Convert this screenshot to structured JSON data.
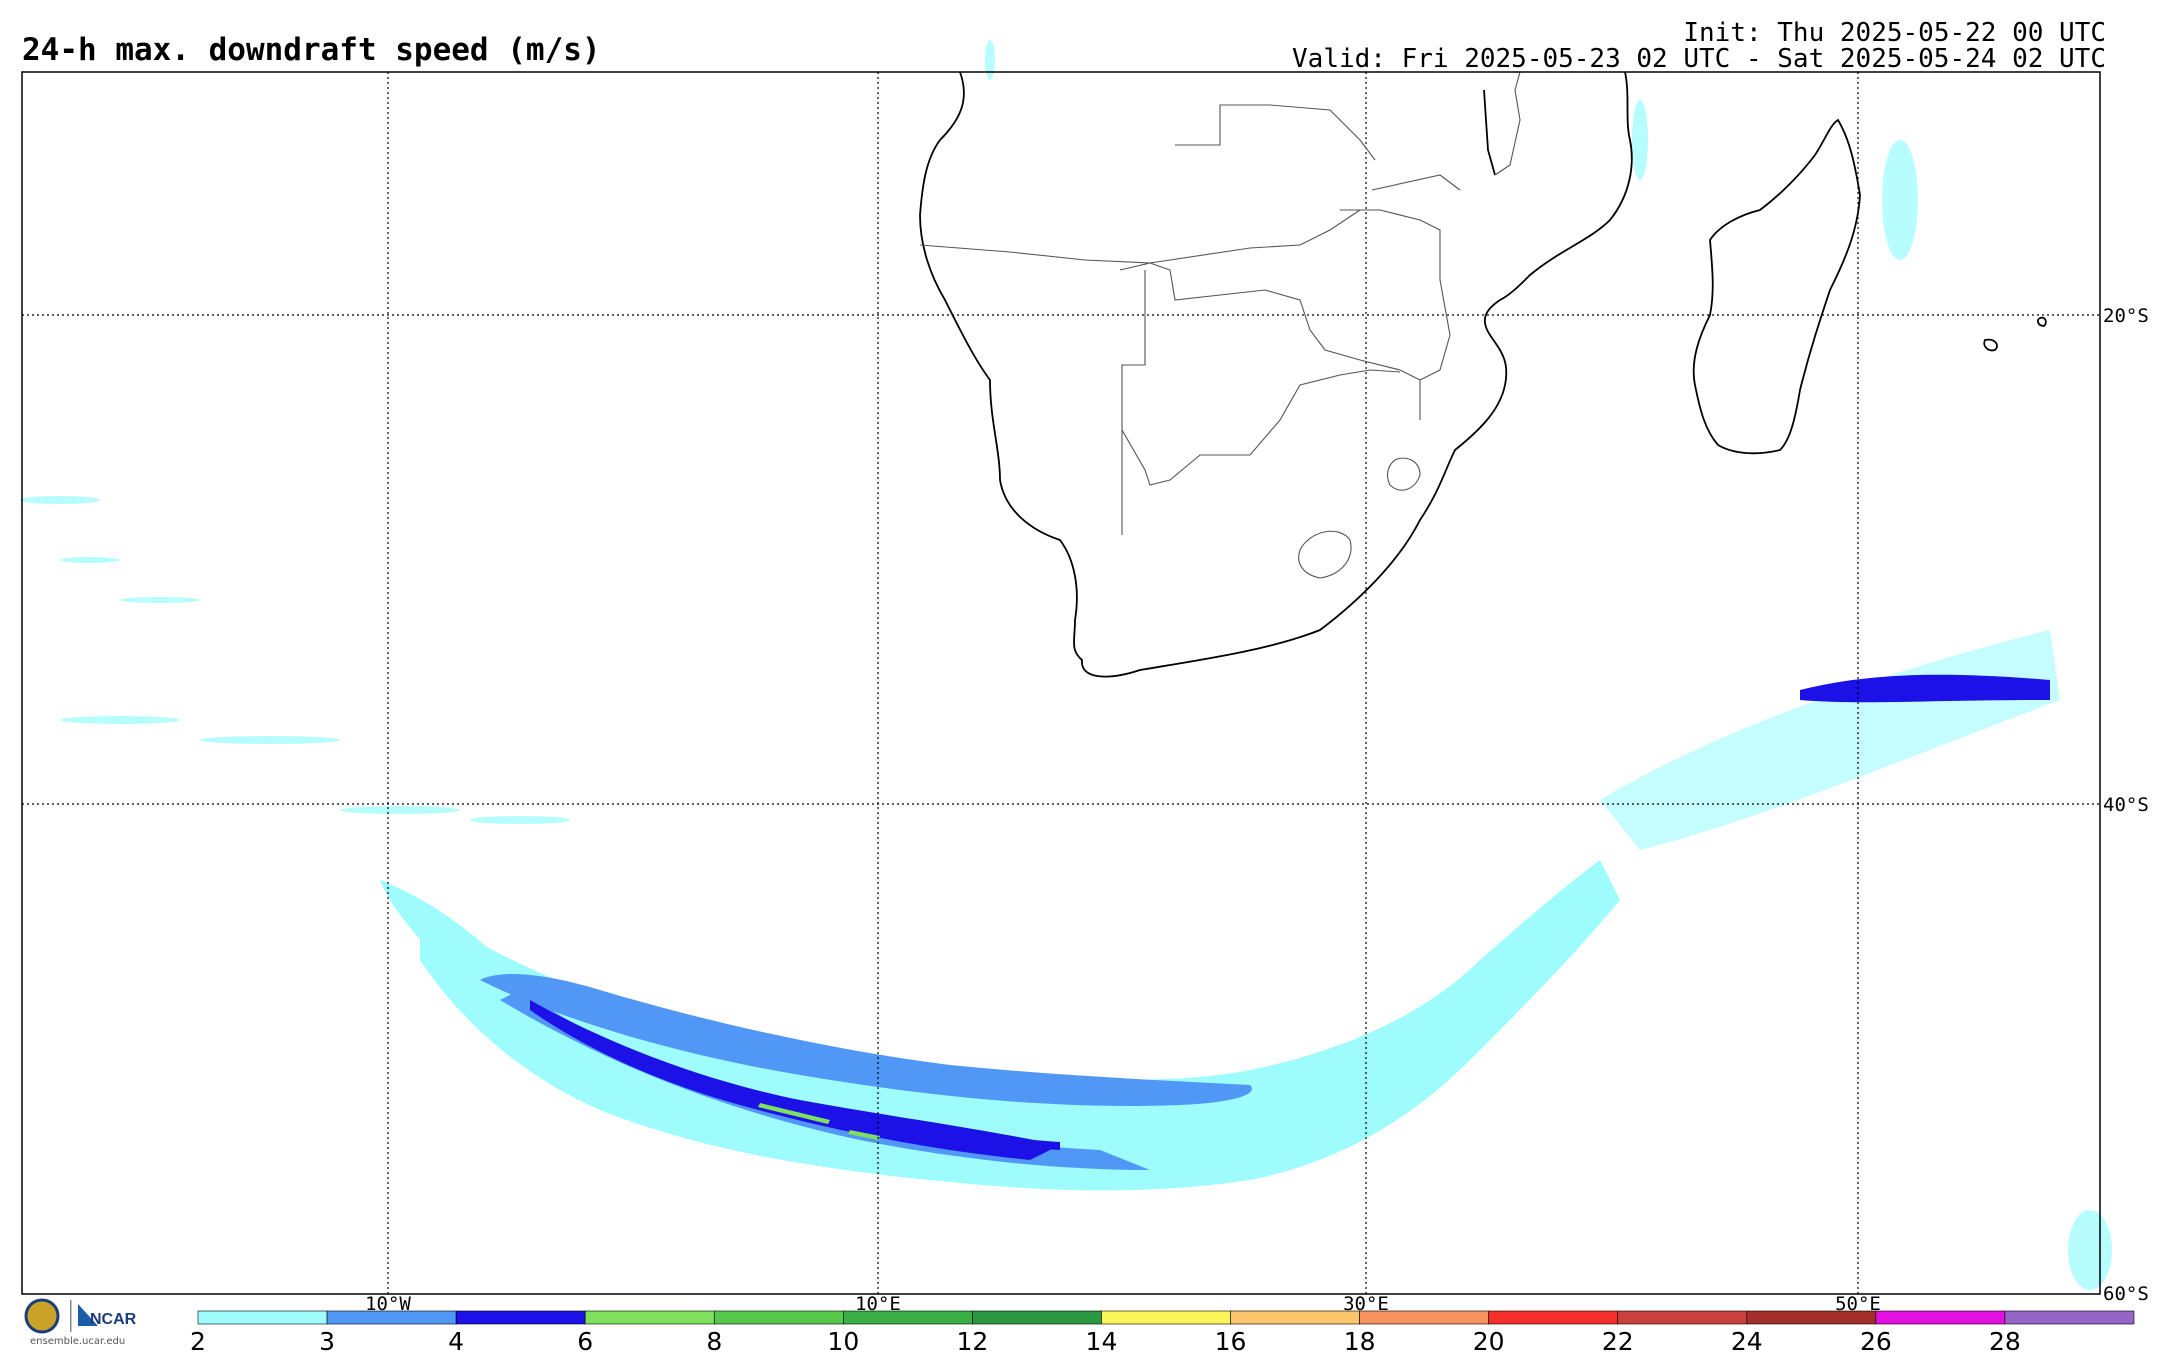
{
  "header": {
    "title": "24-h max. downdraft speed (m/s)",
    "init": "Init: Thu 2025-05-22 00 UTC",
    "valid": "Valid: Fri 2025-05-23 02 UTC - Sat 2025-05-24 02 UTC"
  },
  "map": {
    "lat_labels": [
      "20°S",
      "40°S",
      "60°S"
    ],
    "lon_labels": [
      "10°W",
      "10°E",
      "30°E",
      "50°E"
    ]
  },
  "colorbar": {
    "colors": [
      "#9ffcfd",
      "#5197f6",
      "#1c12e8",
      "#7fe05d",
      "#58c84c",
      "#3bae45",
      "#2a9941",
      "#fdf65b",
      "#fbc56c",
      "#f7935c",
      "#f42e2a",
      "#c9403e",
      "#a32f2c",
      "#e211e1",
      "#9665c8"
    ],
    "labels": [
      "2",
      "3",
      "4",
      "6",
      "8",
      "10",
      "12",
      "14",
      "16",
      "18",
      "20",
      "22",
      "24",
      "26",
      "28"
    ]
  },
  "branding": {
    "logo_text": "NCAR",
    "url": "ensemble.ucar.edu"
  }
}
